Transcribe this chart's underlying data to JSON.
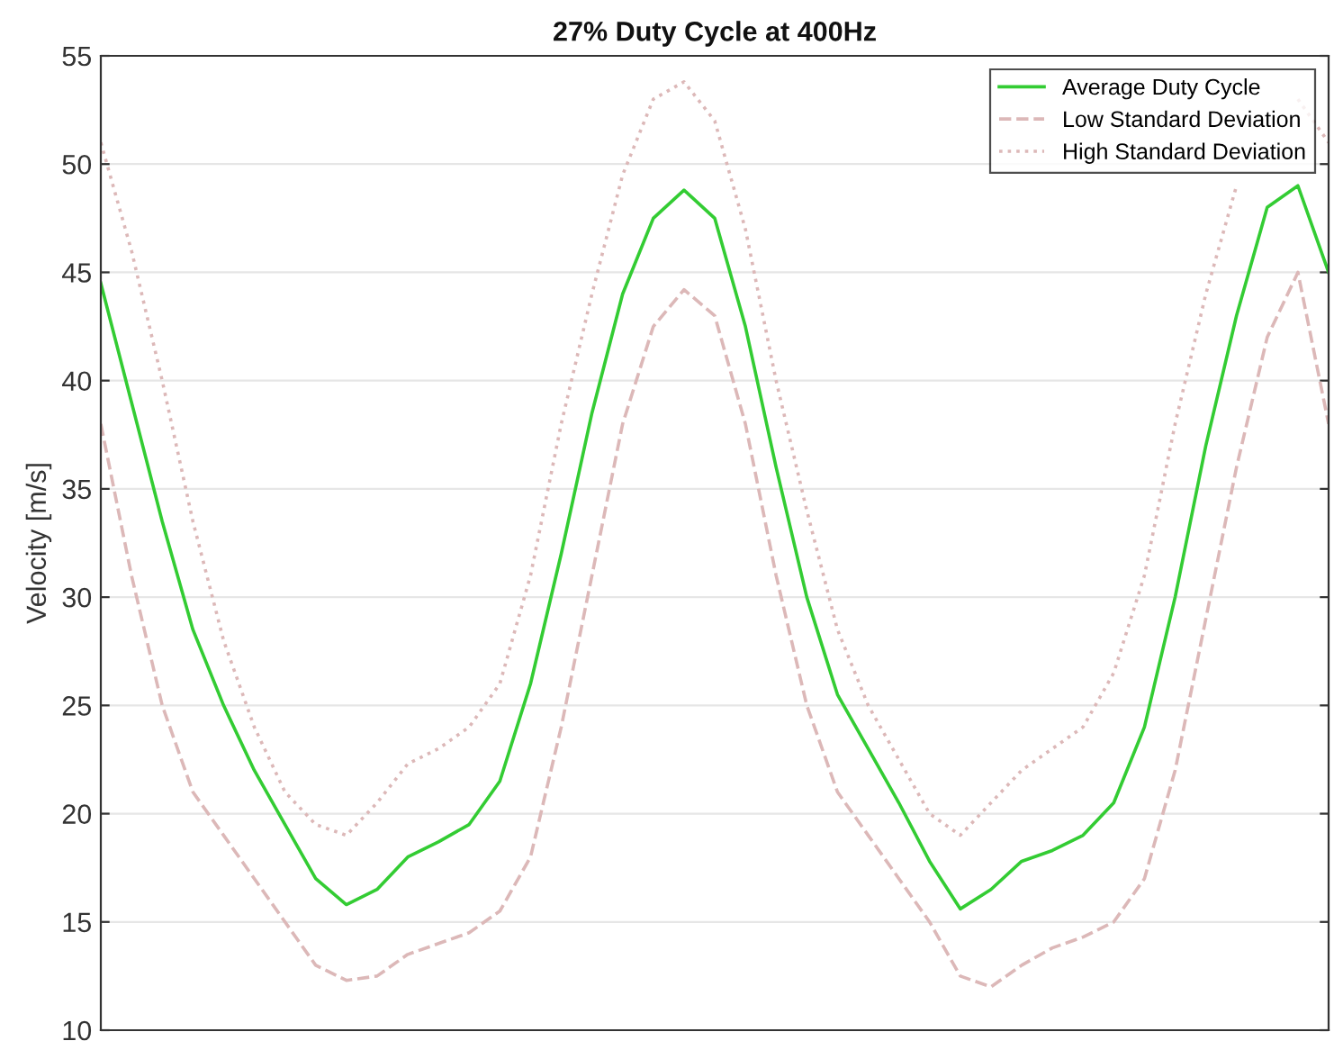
{
  "chart_data": {
    "type": "line",
    "title": "27% Duty Cycle at 400Hz",
    "ylabel": "Velocity [m/s]",
    "categories": [
      null,
      null,
      null,
      null,
      null,
      null,
      null,
      null,
      null,
      null,
      null,
      null,
      null,
      null,
      null,
      null,
      null,
      null,
      null,
      null,
      null,
      null,
      null,
      null,
      null,
      null,
      null,
      null,
      null,
      null,
      null,
      null,
      null,
      null,
      null,
      null,
      null,
      null,
      null,
      null,
      null
    ],
    "series": [
      {
        "name": "Average Duty Cycle",
        "color": "#33cc33",
        "line_style": "solid",
        "values": [
          44.5,
          39,
          33.5,
          28.5,
          25,
          22,
          19.5,
          17,
          15.8,
          16.5,
          18,
          18.7,
          19.5,
          21.5,
          26,
          32,
          38.5,
          44,
          47.5,
          48.8,
          47.5,
          42.5,
          36,
          30,
          25.5,
          23,
          20.5,
          17.8,
          15.6,
          16.5,
          17.8,
          18.3,
          19,
          20.5,
          24,
          30,
          37,
          43,
          48,
          49,
          45
        ]
      },
      {
        "name": "Low Standard Deviation",
        "color": "#dcb8b8",
        "line_style": "dashed",
        "values": [
          38,
          31,
          25,
          21,
          19,
          17,
          15,
          13,
          12.3,
          12.5,
          13.5,
          14,
          14.5,
          15.5,
          18,
          24,
          31,
          38,
          42.5,
          44.2,
          43,
          38,
          31,
          25,
          21,
          19,
          17,
          15,
          12.5,
          12,
          13,
          13.8,
          14.3,
          15,
          17,
          22,
          29,
          36,
          42,
          45,
          38
        ]
      },
      {
        "name": "High Standard Deviation",
        "color": "#dcb8b8",
        "line_style": "dotted",
        "values": [
          51,
          46,
          40,
          33.5,
          28,
          24,
          21,
          19.5,
          19,
          20.5,
          22.3,
          23,
          24,
          26,
          31,
          38,
          44,
          49.5,
          53,
          53.8,
          52,
          47,
          40,
          34,
          28.5,
          25,
          22.5,
          20,
          19,
          20.5,
          22,
          23,
          24,
          26.5,
          31,
          38,
          44,
          49,
          null,
          53,
          51
        ]
      }
    ],
    "ylim": [
      10,
      55
    ],
    "yticks": [
      10,
      15,
      20,
      25,
      30,
      35,
      40,
      45,
      50,
      55
    ],
    "grid": "y",
    "legend": "top right",
    "tick_labels": "y"
  }
}
